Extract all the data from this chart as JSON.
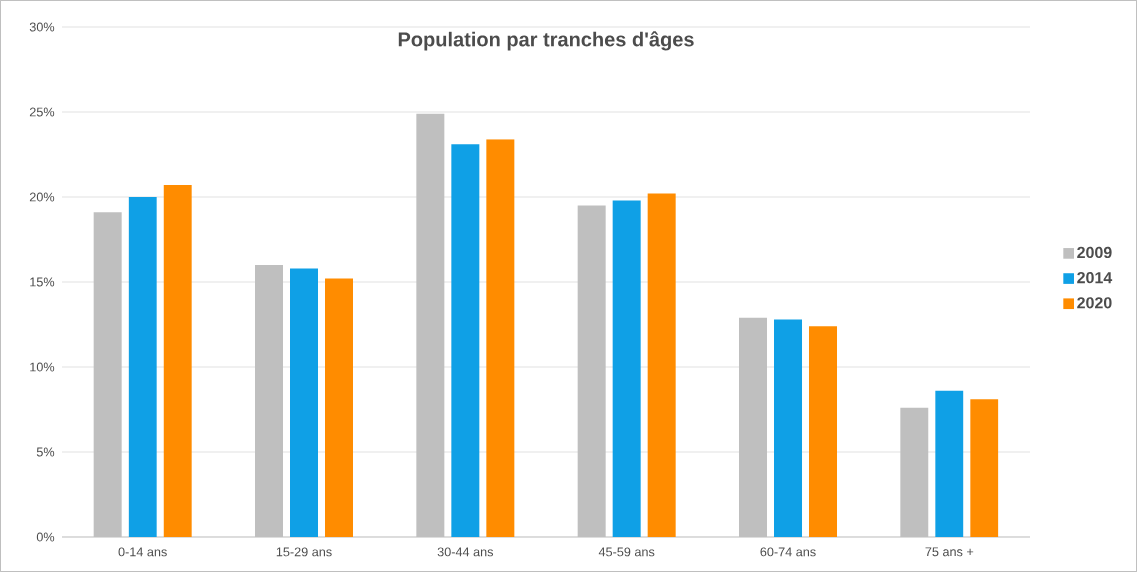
{
  "chart_data": {
    "type": "bar",
    "title": "Population par tranches d'âges",
    "categories": [
      "0-14 ans",
      "15-29 ans",
      "30-44 ans",
      "45-59 ans",
      "60-74 ans",
      "75 ans +"
    ],
    "series": [
      {
        "name": "2009",
        "color": "#bfbfbf",
        "values": [
          19.1,
          16.0,
          24.9,
          19.5,
          12.9,
          7.6
        ]
      },
      {
        "name": "2014",
        "color": "#0fa0e6",
        "values": [
          20.0,
          15.8,
          23.1,
          19.8,
          12.8,
          8.6
        ]
      },
      {
        "name": "2020",
        "color": "#ff8c00",
        "values": [
          20.7,
          15.2,
          23.4,
          20.2,
          12.4,
          8.1
        ]
      }
    ],
    "ylim": [
      0,
      30
    ],
    "yticks": [
      {
        "value": 0,
        "label": "0%"
      },
      {
        "value": 5,
        "label": "5%"
      },
      {
        "value": 10,
        "label": "10%"
      },
      {
        "value": 15,
        "label": "15%"
      },
      {
        "value": 20,
        "label": "20%"
      },
      {
        "value": 25,
        "label": "25%"
      },
      {
        "value": 30,
        "label": "30%"
      }
    ],
    "grid": "y",
    "legend": "right"
  }
}
